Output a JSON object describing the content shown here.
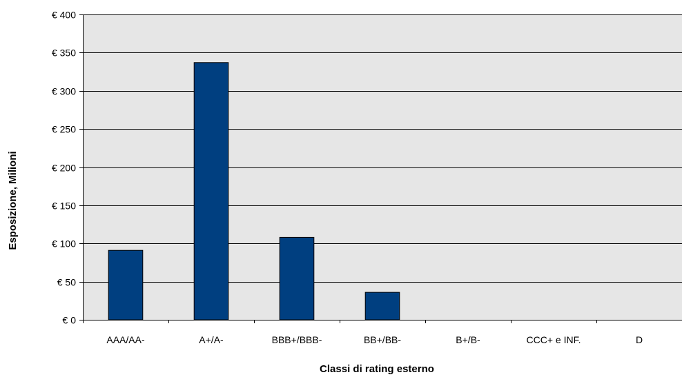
{
  "chart_data": {
    "type": "bar",
    "title": "",
    "xlabel": "Classi di rating esterno",
    "ylabel": "Esposizione, Milioni",
    "categories": [
      "AAA/AA-",
      "A+/A-",
      "BBB+/BBB-",
      "BB+/BB-",
      "B+/B-",
      "CCC+ e INF.",
      "D"
    ],
    "values": [
      91,
      337,
      108,
      36,
      0,
      0,
      0
    ],
    "ylim": [
      0,
      400
    ],
    "yticks": [
      0,
      50,
      100,
      150,
      200,
      250,
      300,
      350,
      400
    ],
    "ytick_labels": [
      "€ 0",
      "€ 50",
      "€ 100",
      "€ 150",
      "€ 200",
      "€ 250",
      "€ 300",
      "€ 350",
      "€ 400"
    ],
    "grid": true,
    "legend": "none",
    "colors": {
      "bar": "#003f80",
      "plot_background": "#e6e6e6",
      "gridline": "#000000"
    }
  }
}
